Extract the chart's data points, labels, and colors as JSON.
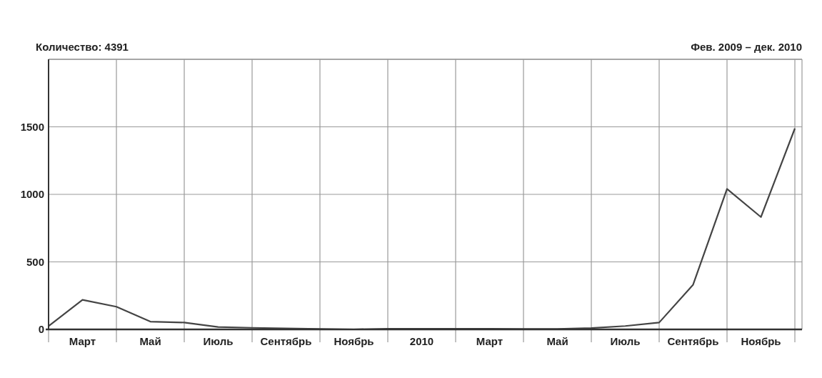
{
  "chart_data": {
    "type": "line",
    "title": "Количество: 4391",
    "subtitle": "Фев. 2009 – дек. 2010",
    "categories": [
      null,
      "Март",
      null,
      "Май",
      null,
      "Июль",
      null,
      "Сентябрь",
      null,
      "Ноябрь",
      null,
      "2010",
      null,
      "Март",
      null,
      "Май",
      null,
      "Июль",
      null,
      "Сентябрь",
      null,
      "Ноябрь",
      null
    ],
    "series": [
      {
        "color": "#444444",
        "values": [
          25,
          219,
          168,
          58,
          51,
          18,
          12,
          8,
          3,
          0,
          5,
          5,
          5,
          5,
          3,
          3,
          10,
          25,
          51,
          331,
          1040,
          832,
          1488
        ]
      }
    ],
    "ylim": [
      0,
      2000
    ],
    "yticks": [
      0,
      500,
      1000,
      1500
    ],
    "grid": true,
    "marker": "none",
    "line_style": "solid"
  }
}
